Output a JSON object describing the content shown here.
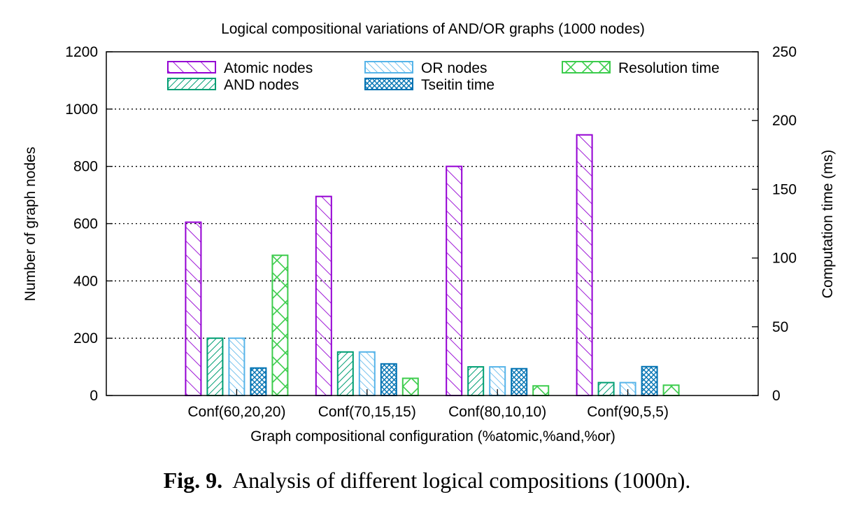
{
  "chart_data": {
    "type": "bar",
    "title": "Logical compositional variations of AND/OR graphs (1000 nodes)",
    "xlabel": "Graph compositional configuration (%atomic,%and,%or)",
    "ylabel": "Number of graph nodes",
    "y2label": "Computation time (ms)",
    "ylim": [
      0,
      1200
    ],
    "y2lim": [
      0,
      250
    ],
    "yticks": [
      "0",
      "200",
      "400",
      "600",
      "800",
      "1000",
      "1200"
    ],
    "y2ticks": [
      "0",
      "50",
      "100",
      "150",
      "200",
      "250"
    ],
    "grid": "horizontal dotted",
    "legend_position": "top",
    "categories": [
      "Conf(60,20,20)",
      "Conf(70,15,15)",
      "Conf(80,10,10)",
      "Conf(90,5,5)"
    ],
    "series": [
      {
        "name": "Atomic nodes",
        "axis": "left",
        "color": "#9400d3",
        "pattern": "diag-right",
        "values": [
          605,
          695,
          800,
          910
        ]
      },
      {
        "name": "AND nodes",
        "axis": "left",
        "color": "#009e73",
        "pattern": "diag-left",
        "values": [
          200,
          152,
          100,
          45
        ]
      },
      {
        "name": "OR nodes",
        "axis": "left",
        "color": "#56b4e9",
        "pattern": "diag-right-thin",
        "values": [
          200,
          152,
          100,
          45
        ]
      },
      {
        "name": "Tseitin time",
        "axis": "right",
        "color": "#0072b2",
        "pattern": "cross-dense",
        "values": [
          20,
          23,
          19.5,
          21
        ]
      },
      {
        "name": "Resolution time",
        "axis": "right",
        "color": "#3ccc4c",
        "pattern": "cross-sparse",
        "values": [
          102,
          12.5,
          7,
          7.5
        ]
      }
    ]
  },
  "caption": {
    "label": "Fig. 9.",
    "text": "Analysis of different logical compositions (1000n)."
  }
}
